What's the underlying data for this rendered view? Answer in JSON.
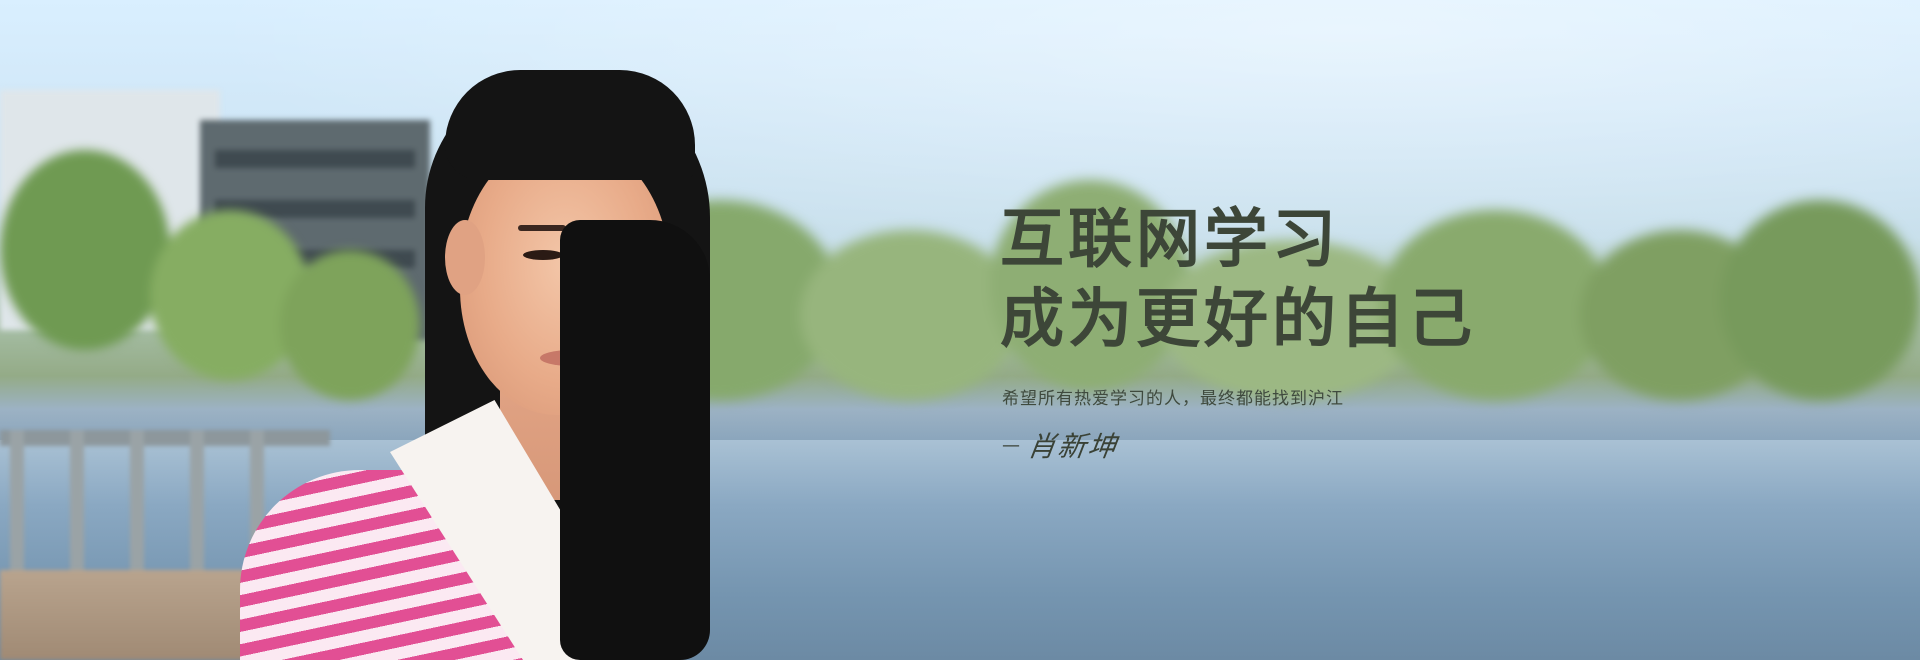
{
  "banner": {
    "headline_line1": "互联网学习",
    "headline_line2": "成为更好的自己",
    "tagline": "希望所有热爱学习的人，最终都能找到沪江",
    "signature_dash": "—",
    "signature_name": "肖新坤",
    "colors": {
      "headline": "#3d4638",
      "tagline": "#3f4a3e"
    }
  }
}
